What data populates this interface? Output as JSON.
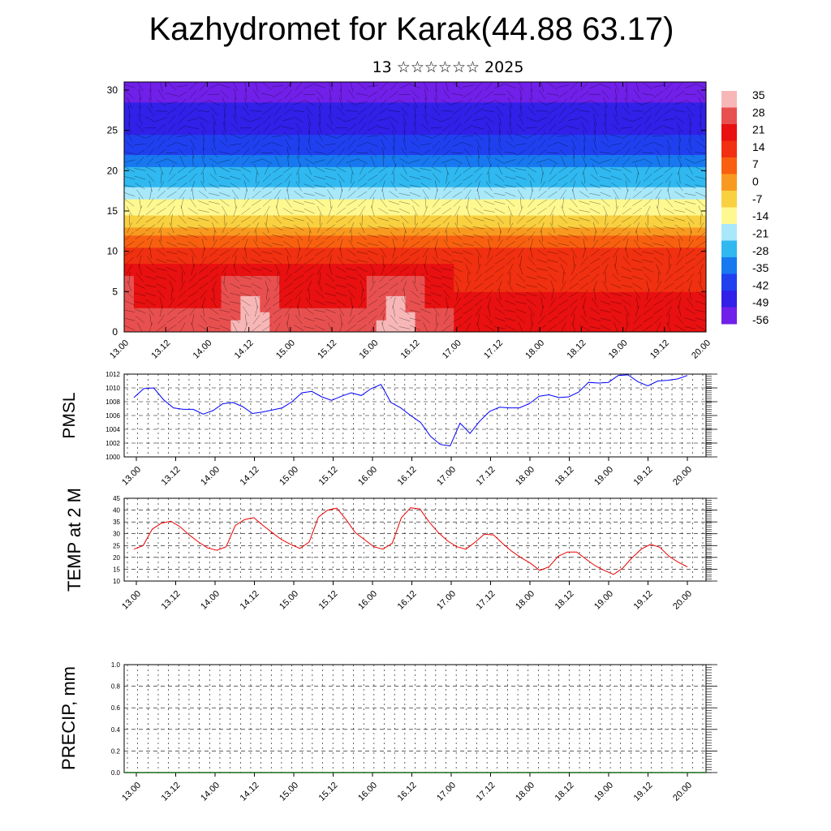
{
  "header": {
    "title": "Kazhydromet for Karak(44.88 63.17)",
    "subtitle": "13 ☆☆☆☆☆☆ 2025"
  },
  "chart_data": [
    {
      "type": "heatmap",
      "name": "temperature-cross-section",
      "x_ticks": [
        "13.00",
        "13.12",
        "14.00",
        "14.12",
        "15.00",
        "15.12",
        "16.00",
        "16.12",
        "17.00",
        "17.12",
        "18.00",
        "18.12",
        "19.00",
        "19.12",
        "20.00"
      ],
      "y_ticks": [
        "0",
        "5",
        "10",
        "15",
        "20",
        "25",
        "30"
      ],
      "ylim": [
        0,
        31
      ],
      "colorbar": {
        "labels": [
          "35",
          "28",
          "21",
          "14",
          "7",
          "0",
          "-7",
          "-14",
          "-21",
          "-28",
          "-35",
          "-42",
          "-49",
          "-56"
        ],
        "colors": [
          "#f7b7b7",
          "#e85050",
          "#e81010",
          "#f03010",
          "#f86010",
          "#f89a20",
          "#f8d040",
          "#fff890",
          "#a8e8f8",
          "#30b8f0",
          "#1878f0",
          "#2040f0",
          "#3020e8",
          "#7020e8"
        ]
      }
    },
    {
      "type": "line",
      "name": "pmsl",
      "ylabel": "PMSL",
      "ylim": [
        1000,
        1012
      ],
      "y_ticks": [
        "1000",
        "1002",
        "1004",
        "1006",
        "1008",
        "1010",
        "1012"
      ],
      "x_ticks": [
        "13.00",
        "13.12",
        "14.00",
        "14.12",
        "15.00",
        "15.12",
        "16.00",
        "16.12",
        "17.00",
        "17.12",
        "18.00",
        "18.12",
        "19.00",
        "19.12",
        "20.00"
      ],
      "color": "#0000ff",
      "values": [
        1008.6,
        1009.9,
        1010.0,
        1008.3,
        1007.1,
        1006.9,
        1006.9,
        1006.2,
        1006.7,
        1007.7,
        1007.9,
        1007.3,
        1006.3,
        1006.5,
        1006.8,
        1007.1,
        1008.0,
        1009.3,
        1009.5,
        1008.7,
        1008.2,
        1008.8,
        1009.3,
        1008.9,
        1009.9,
        1010.5,
        1007.9,
        1007.1,
        1006.0,
        1005.0,
        1003.0,
        1001.8,
        1001.6,
        1004.9,
        1003.4,
        1005.2,
        1006.6,
        1007.2,
        1007.1,
        1007.1,
        1007.7,
        1008.8,
        1009.0,
        1008.6,
        1008.7,
        1009.4,
        1010.8,
        1010.7,
        1010.8,
        1011.8,
        1011.9,
        1010.9,
        1010.3,
        1011.0,
        1011.1,
        1011.3,
        1011.8
      ]
    },
    {
      "type": "line",
      "name": "temp-2m",
      "ylabel": "TEMP at 2 M",
      "ylim": [
        10,
        45
      ],
      "y_ticks": [
        "10",
        "15",
        "20",
        "25",
        "30",
        "35",
        "40",
        "45"
      ],
      "x_ticks": [
        "13.00",
        "13.12",
        "14.00",
        "14.12",
        "15.00",
        "15.12",
        "16.00",
        "16.12",
        "17.00",
        "17.12",
        "18.00",
        "18.12",
        "19.00",
        "19.12",
        "20.00"
      ],
      "color": "#ee0000",
      "values": [
        23.5,
        25.0,
        32.0,
        34.5,
        35.3,
        33.0,
        29.5,
        26.5,
        24.0,
        23.0,
        24.5,
        33.5,
        36.0,
        36.8,
        33.5,
        30.5,
        27.5,
        25.5,
        23.8,
        26.5,
        37.0,
        40.0,
        40.8,
        36.0,
        30.5,
        27.5,
        24.5,
        23.5,
        26.0,
        36.8,
        41.0,
        40.5,
        35.0,
        30.5,
        27.0,
        24.5,
        23.5,
        26.5,
        29.8,
        29.5,
        25.8,
        22.5,
        19.8,
        17.5,
        14.5,
        16.0,
        20.5,
        22.3,
        22.3,
        19.3,
        16.5,
        14.5,
        12.8,
        15.5,
        19.8,
        23.5,
        25.5,
        24.3,
        20.5,
        18.0,
        16.0
      ]
    },
    {
      "type": "bar",
      "name": "precip",
      "ylabel": "PRECIP, mm",
      "ylim": [
        0,
        1
      ],
      "y_ticks": [
        "0.0",
        "0.2",
        "0.4",
        "0.6",
        "0.8",
        "1.0"
      ],
      "x_ticks": [
        "13.00",
        "13.12",
        "14.00",
        "14.12",
        "15.00",
        "15.12",
        "16.00",
        "16.12",
        "17.00",
        "17.12",
        "18.00",
        "18.12",
        "19.00",
        "19.12",
        "20.00"
      ],
      "values": []
    }
  ]
}
